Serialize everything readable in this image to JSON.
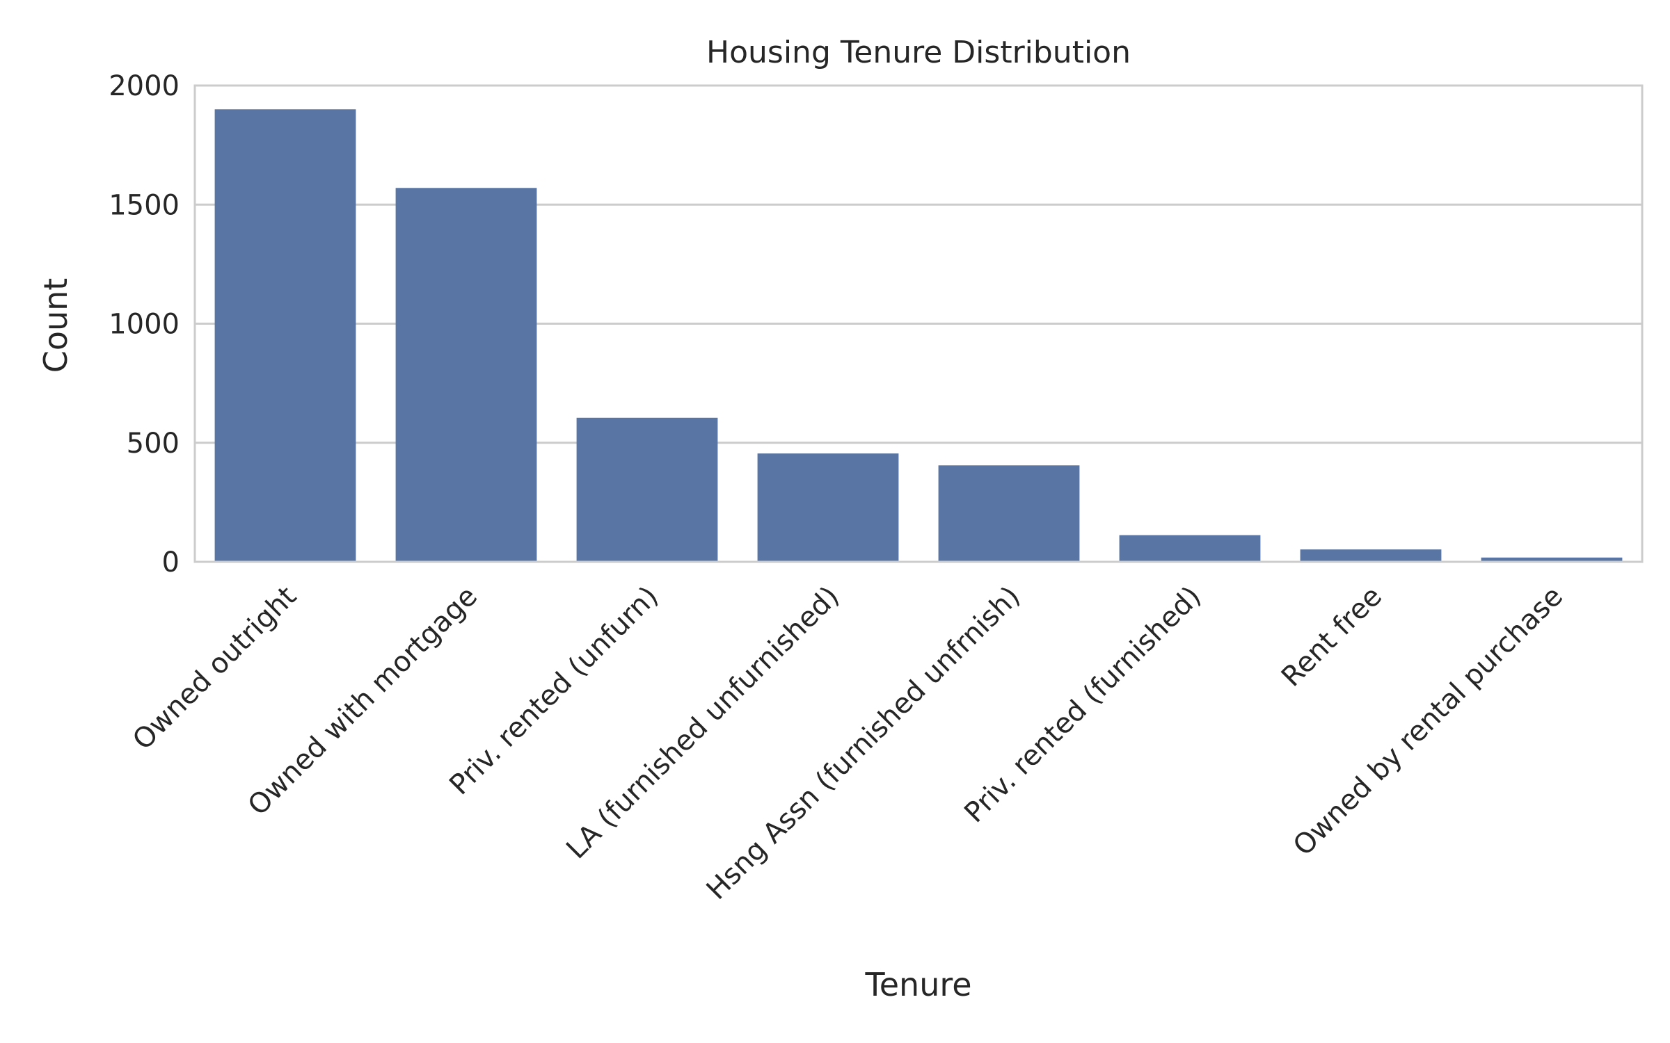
{
  "chart_data": {
    "type": "bar",
    "title": "Housing Tenure Distribution",
    "xlabel": "Tenure",
    "ylabel": "Count",
    "categories": [
      "Owned outright",
      "Owned with mortgage",
      "Priv. rented (unfurn)",
      "LA (furnished unfurnished)",
      "Hsng Assn (furnished unfrnish)",
      "Priv. rented (furnished)",
      "Rent free",
      "Owned by rental purchase"
    ],
    "values": [
      1900,
      1570,
      605,
      455,
      405,
      112,
      52,
      18
    ],
    "ylim": [
      0,
      2000
    ],
    "yticks": [
      0,
      500,
      1000,
      1500,
      2000
    ],
    "ytick_labels": [
      "0",
      "500",
      "1000",
      "1500",
      "2000"
    ],
    "grid": "horizontal",
    "bar_color": "#5975a4",
    "grid_color": "#cccccc",
    "frame_color": "#cccccc"
  }
}
